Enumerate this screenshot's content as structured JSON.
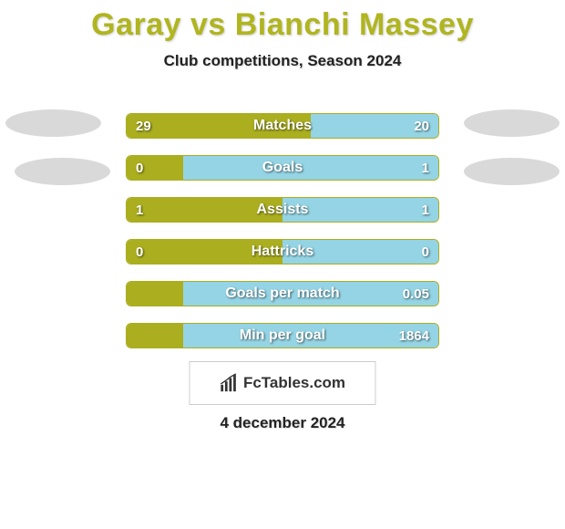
{
  "title": "Garay vs Bianchi Massey",
  "subtitle": "Club competitions, Season 2024",
  "date_text": "4 december 2024",
  "brand_text": "FcTables.com",
  "colors": {
    "left": "#aaae1f",
    "right": "#94d4e4",
    "title": "#b0b520"
  },
  "bars": [
    {
      "label": "Matches",
      "left_val": "29",
      "right_val": "20",
      "left_pct": 59,
      "right_pct": 41
    },
    {
      "label": "Goals",
      "left_val": "0",
      "right_val": "1",
      "left_pct": 18,
      "right_pct": 82
    },
    {
      "label": "Assists",
      "left_val": "1",
      "right_val": "1",
      "left_pct": 50,
      "right_pct": 50
    },
    {
      "label": "Hattricks",
      "left_val": "0",
      "right_val": "0",
      "left_pct": 50,
      "right_pct": 50
    },
    {
      "label": "Goals per match",
      "left_val": "",
      "right_val": "0.05",
      "left_pct": 18,
      "right_pct": 82
    },
    {
      "label": "Min per goal",
      "left_val": "",
      "right_val": "1864",
      "left_pct": 18,
      "right_pct": 82
    }
  ]
}
